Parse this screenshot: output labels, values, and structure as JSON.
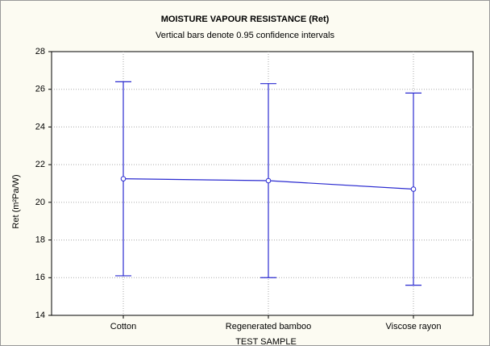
{
  "chart_data": {
    "type": "line",
    "title": "MOISTURE VAPOUR RESISTANCE (Ret)",
    "subtitle": "Vertical bars denote 0.95 confidence intervals",
    "x_label": "TEST SAMPLE",
    "y_label": "Ret (m²Pa/W)",
    "categories": [
      "Cotton",
      "Regenerated bamboo",
      "Viscose rayon"
    ],
    "values": [
      21.25,
      21.15,
      20.7
    ],
    "errors": [
      5.15,
      5.15,
      5.1
    ],
    "color": "#2b2bd0",
    "ylim": [
      14,
      28
    ],
    "yticks": [
      14,
      16,
      18,
      20,
      22,
      24,
      26,
      28
    ],
    "grid": true
  }
}
